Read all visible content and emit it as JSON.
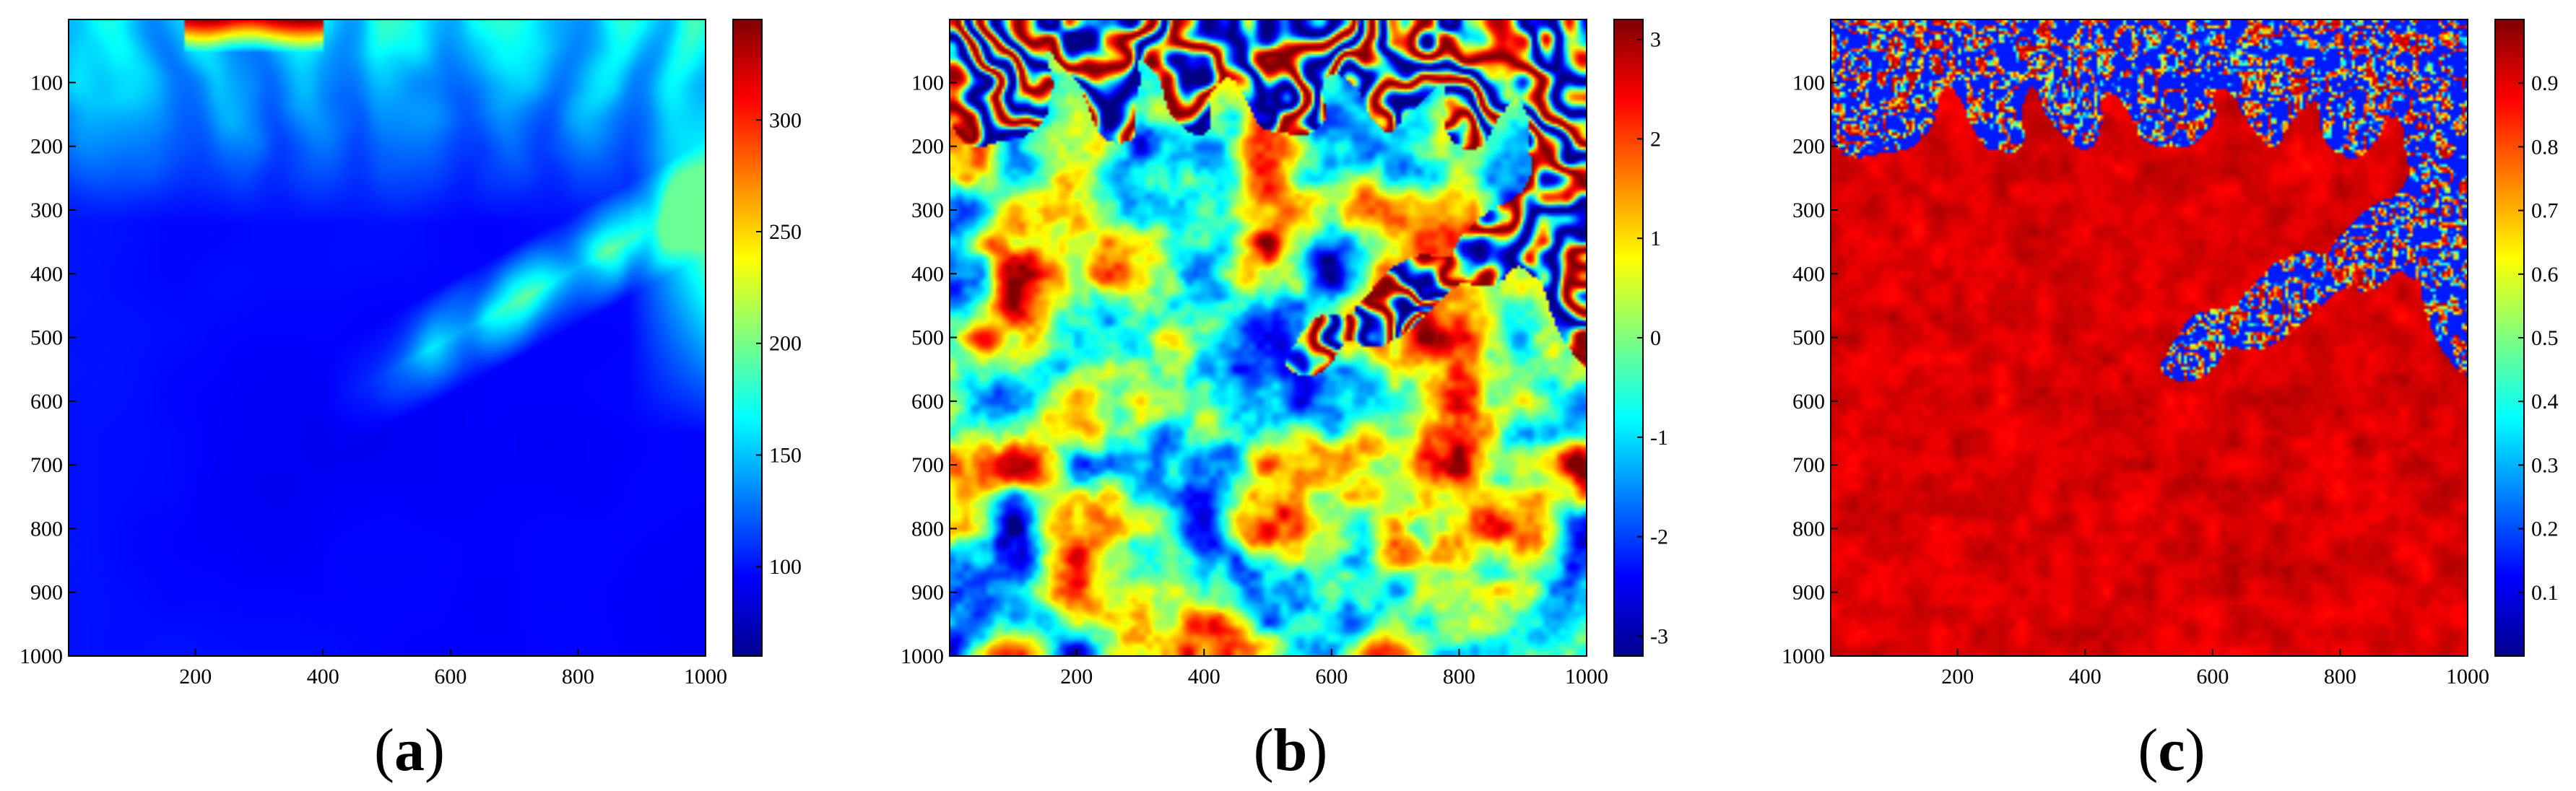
{
  "figure": {
    "panels": [
      {
        "label_open": "(",
        "label_letter": "a",
        "label_close": ")",
        "field": "dem",
        "colormap": "jet",
        "colorbar_ticks": [
          "100",
          "150",
          "200",
          "250",
          "300"
        ]
      },
      {
        "label_open": "(",
        "label_letter": "b",
        "label_close": ")",
        "field": "phase",
        "colormap": "jet",
        "colorbar_ticks": [
          "-3",
          "-2",
          "-1",
          "0",
          "1",
          "2",
          "3"
        ]
      },
      {
        "label_open": "(",
        "label_letter": "c",
        "label_close": ")",
        "field": "coherence",
        "colormap": "jet",
        "colorbar_ticks": [
          "0.1",
          "0.2",
          "0.3",
          "0.4",
          "0.5",
          "0.6",
          "0.7",
          "0.8",
          "0.9"
        ]
      }
    ]
  },
  "chart_data": [
    {
      "type": "heatmap",
      "panel": "a",
      "title": "",
      "xlabel": "",
      "ylabel": "",
      "x_ticks": [
        200,
        400,
        600,
        800,
        1000
      ],
      "y_ticks": [
        100,
        200,
        300,
        400,
        500,
        600,
        700,
        800,
        900,
        1000
      ],
      "xlim": [
        1,
        1000
      ],
      "ylim": [
        1000,
        1
      ],
      "y_reversed": true,
      "colorbar": {
        "ticks": [
          100,
          150,
          200,
          250,
          300
        ],
        "range": [
          60,
          345
        ]
      },
      "description_values": {
        "background": 90,
        "ridges_top": 180,
        "peak_top": 330,
        "right_edge": 220
      }
    },
    {
      "type": "heatmap",
      "panel": "b",
      "title": "",
      "xlabel": "",
      "ylabel": "",
      "x_ticks": [
        200,
        400,
        600,
        800,
        1000
      ],
      "y_ticks": [
        100,
        200,
        300,
        400,
        500,
        600,
        700,
        800,
        900,
        1000
      ],
      "xlim": [
        1,
        1000
      ],
      "ylim": [
        1000,
        1
      ],
      "y_reversed": true,
      "colorbar": {
        "ticks": [
          -3,
          -2,
          -1,
          0,
          1,
          2,
          3
        ],
        "range": [
          -3.2,
          3.2
        ]
      },
      "description_values": {
        "min": -3.14,
        "max": 3.14
      }
    },
    {
      "type": "heatmap",
      "panel": "c",
      "title": "",
      "xlabel": "",
      "ylabel": "",
      "x_ticks": [
        200,
        400,
        600,
        800,
        1000
      ],
      "y_ticks": [
        100,
        200,
        300,
        400,
        500,
        600,
        700,
        800,
        900,
        1000
      ],
      "xlim": [
        1,
        1000
      ],
      "ylim": [
        1000,
        1
      ],
      "y_reversed": true,
      "colorbar": {
        "ticks": [
          0.1,
          0.2,
          0.3,
          0.4,
          0.5,
          0.6,
          0.7,
          0.8,
          0.9
        ],
        "range": [
          0,
          1
        ]
      },
      "description_values": {
        "flat_area": 0.95,
        "slopes": 0.15
      }
    }
  ]
}
